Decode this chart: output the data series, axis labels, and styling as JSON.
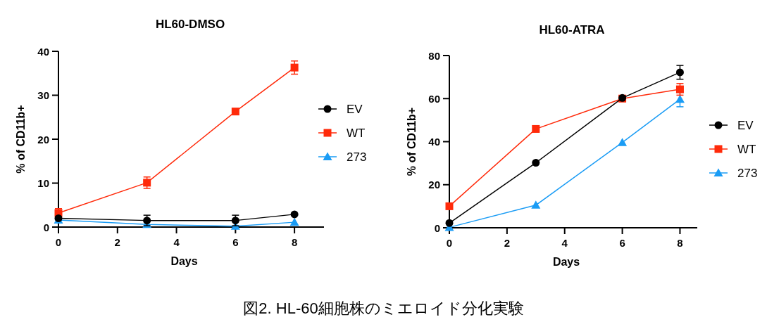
{
  "chart_data": [
    {
      "type": "line",
      "title": "HL60-DMSO",
      "xlabel": "Days",
      "ylabel": "% of CD11b+",
      "x": [
        0,
        3,
        6,
        8
      ],
      "xlim": [
        0,
        9
      ],
      "ylim": [
        0,
        40
      ],
      "xticks": [
        0,
        2,
        4,
        6,
        8
      ],
      "yticks": [
        0,
        10,
        20,
        30,
        40
      ],
      "legend": "right",
      "line_style": "solid",
      "series": [
        {
          "name": "EV",
          "color": "#000000",
          "marker": "circle",
          "values": [
            2.0,
            1.5,
            1.5,
            2.9
          ],
          "errors": [
            0.3,
            1.2,
            1.2,
            null
          ]
        },
        {
          "name": "WT",
          "color": "#ff2a0a",
          "marker": "square",
          "values": [
            3.2,
            10.1,
            26.3,
            36.3
          ],
          "errors": [
            1.0,
            1.3,
            null,
            1.5
          ]
        },
        {
          "name": "273",
          "color": "#1a9cf5",
          "marker": "triangle",
          "values": [
            1.6,
            0.6,
            0.2,
            1.1
          ],
          "errors": [
            null,
            null,
            null,
            null
          ]
        }
      ],
      "annotations": [
        "図2. HL-60細胞株のミエロイド分化実験"
      ]
    },
    {
      "type": "line",
      "title": "HL60-ATRA",
      "xlabel": "Days",
      "ylabel": "% of CD11b+",
      "x": [
        0,
        3,
        6,
        8
      ],
      "xlim": [
        0,
        8.6
      ],
      "ylim": [
        0,
        80
      ],
      "xticks": [
        0,
        2,
        4,
        6,
        8
      ],
      "yticks": [
        0,
        20,
        40,
        60,
        80
      ],
      "legend": "right",
      "line_style": "solid",
      "series": [
        {
          "name": "EV",
          "color": "#000000",
          "marker": "circle",
          "values": [
            2.2,
            30.2,
            60.3,
            72.2
          ],
          "errors": [
            null,
            null,
            null,
            3.2
          ]
        },
        {
          "name": "WT",
          "color": "#ff2a0a",
          "marker": "square",
          "values": [
            10.0,
            45.9,
            60.0,
            64.3
          ],
          "errors": [
            null,
            null,
            null,
            2.7
          ]
        },
        {
          "name": "273",
          "color": "#1a9cf5",
          "marker": "triangle",
          "values": [
            0.2,
            10.5,
            39.6,
            59.7
          ],
          "errors": [
            null,
            null,
            null,
            3.5
          ]
        }
      ]
    }
  ]
}
